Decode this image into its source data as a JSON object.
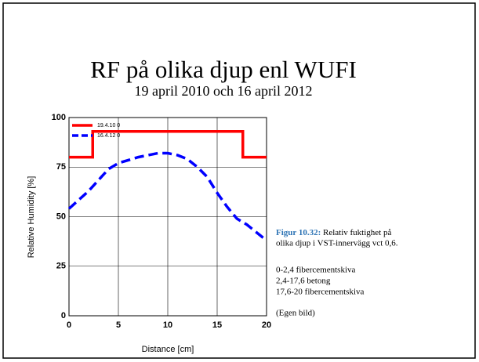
{
  "chart_data": {
    "type": "line",
    "title": "RF på olika djup enl WUFI",
    "subtitle": "19 april 2010 och 16 april 2012",
    "xlabel": "Distance [cm]",
    "ylabel": "Relative Humidity [%]",
    "xlim": [
      0,
      20
    ],
    "ylim": [
      0,
      100
    ],
    "xticks": [
      0,
      5,
      10,
      15,
      20
    ],
    "yticks": [
      0,
      25,
      50,
      75,
      100
    ],
    "grid": true,
    "legend": "upper left",
    "series": [
      {
        "name": "19.4.10 0",
        "color": "#ff0000",
        "style": "solid",
        "x": [
          0,
          2.4,
          2.4,
          17.6,
          17.6,
          20
        ],
        "values": [
          80,
          80,
          93,
          93,
          80,
          80
        ]
      },
      {
        "name": "16.4.12 0",
        "color": "#0000ff",
        "style": "dashed",
        "x": [
          0,
          2,
          4,
          5,
          7,
          9,
          10,
          11,
          12,
          13,
          14,
          15,
          16,
          17,
          18,
          19,
          20
        ],
        "values": [
          54,
          63,
          74,
          77,
          80,
          82,
          82,
          81,
          79,
          75,
          70,
          62,
          55,
          49,
          46,
          42,
          38
        ]
      }
    ]
  },
  "caption": {
    "label": "Figur 10.32:",
    "text": "Relativ fuktighet på",
    "text2": "olika djup i VST-innervägg vct 0,6.",
    "notes": [
      "0-2,4 fibercementskiva",
      "2,4-17,6 betong",
      "17,6-20 fibercementskiva",
      "(Egen bild)"
    ]
  }
}
